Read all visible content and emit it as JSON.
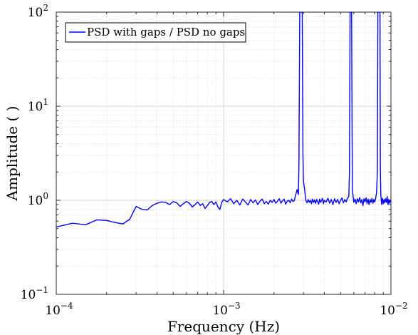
{
  "chart_data": {
    "type": "line",
    "xlabel": "Frequency (Hz)",
    "ylabel": "Amplitude ( )",
    "xscale": "log",
    "yscale": "log",
    "xlim": [
      0.0001,
      0.01
    ],
    "ylim": [
      0.1,
      100
    ],
    "grid": "on (major and minor)",
    "legend_position": "top-left",
    "x_ticks": [
      {
        "base": "10",
        "exp": "−4",
        "value": 0.0001
      },
      {
        "base": "10",
        "exp": "−3",
        "value": 0.001
      },
      {
        "base": "10",
        "exp": "−2",
        "value": 0.01
      }
    ],
    "y_ticks": [
      {
        "base": "10",
        "exp": "−1",
        "value": 0.1
      },
      {
        "base": "10",
        "exp": "0",
        "value": 1
      },
      {
        "base": "10",
        "exp": "1",
        "value": 10
      },
      {
        "base": "10",
        "exp": "2",
        "value": 100
      }
    ],
    "series": [
      {
        "name": "PSD with gaps / PSD no gaps",
        "color": "#0000ff",
        "points": [
          [
            0.0001,
            0.52
          ],
          [
            0.000125,
            0.57
          ],
          [
            0.00015,
            0.55
          ],
          [
            0.000175,
            0.62
          ],
          [
            0.0002,
            0.61
          ],
          [
            0.000225,
            0.58
          ],
          [
            0.00025,
            0.56
          ],
          [
            0.000275,
            0.63
          ],
          [
            0.0003,
            0.86
          ],
          [
            0.000325,
            0.8
          ],
          [
            0.00035,
            0.79
          ],
          [
            0.000375,
            0.88
          ],
          [
            0.0004,
            0.93
          ],
          [
            0.000425,
            0.96
          ],
          [
            0.00045,
            0.95
          ],
          [
            0.000475,
            0.9
          ],
          [
            0.0005,
            0.97
          ],
          [
            0.000525,
            0.94
          ],
          [
            0.00055,
            0.86
          ],
          [
            0.000575,
            0.92
          ],
          [
            0.0006,
            0.97
          ],
          [
            0.000625,
            0.93
          ],
          [
            0.00065,
            0.85
          ],
          [
            0.000675,
            0.9
          ],
          [
            0.0007,
            0.96
          ],
          [
            0.000725,
            0.88
          ],
          [
            0.00075,
            0.92
          ],
          [
            0.000775,
            0.82
          ],
          [
            0.0008,
            0.88
          ],
          [
            0.000825,
            0.95
          ],
          [
            0.00085,
            0.97
          ],
          [
            0.000875,
            0.9
          ],
          [
            0.0009,
            0.96
          ],
          [
            0.000925,
            0.85
          ],
          [
            0.00095,
            0.8
          ],
          [
            0.000975,
            0.95
          ],
          [
            0.001,
            1.02
          ],
          [
            0.00105,
            0.96
          ],
          [
            0.0011,
            1.04
          ],
          [
            0.00115,
            0.92
          ],
          [
            0.0012,
            1.0
          ],
          [
            0.00125,
            0.89
          ],
          [
            0.0013,
            1.03
          ],
          [
            0.00135,
            0.96
          ],
          [
            0.0014,
            0.89
          ],
          [
            0.00145,
            1.02
          ],
          [
            0.0015,
            0.94
          ],
          [
            0.00155,
            1.01
          ],
          [
            0.0016,
            0.9
          ],
          [
            0.00165,
            0.98
          ],
          [
            0.0017,
            1.03
          ],
          [
            0.00175,
            0.92
          ],
          [
            0.0018,
            0.97
          ],
          [
            0.00185,
            0.91
          ],
          [
            0.0019,
            1.0
          ],
          [
            0.00195,
            0.95
          ],
          [
            0.002,
            1.02
          ],
          [
            0.00205,
            0.93
          ],
          [
            0.0021,
            0.98
          ],
          [
            0.00215,
            1.04
          ],
          [
            0.0022,
            0.93
          ],
          [
            0.00225,
            0.99
          ],
          [
            0.0023,
            1.03
          ],
          [
            0.00235,
            0.91
          ],
          [
            0.0024,
            0.98
          ],
          [
            0.00245,
            1.0
          ],
          [
            0.0025,
            0.94
          ],
          [
            0.00255,
            1.03
          ],
          [
            0.0026,
            0.97
          ],
          [
            0.00265,
            1.0
          ],
          [
            0.0027,
            1.15
          ],
          [
            0.00275,
            1.3
          ],
          [
            0.0028,
            1.15
          ],
          [
            0.00282,
            2.5
          ],
          [
            0.00285,
            100
          ],
          [
            0.0029,
            100
          ],
          [
            0.00295,
            100
          ],
          [
            0.00298,
            3.0
          ],
          [
            0.003,
            1.6
          ],
          [
            0.00305,
            1.3
          ],
          [
            0.0031,
            1.0
          ],
          [
            0.00315,
            0.94
          ],
          [
            0.0032,
            1.02
          ],
          [
            0.00325,
            0.95
          ],
          [
            0.0033,
            1.0
          ],
          [
            0.00335,
            0.92
          ],
          [
            0.0034,
            1.03
          ],
          [
            0.00345,
            0.95
          ],
          [
            0.0035,
            1.01
          ],
          [
            0.00355,
            0.93
          ],
          [
            0.0036,
            1.02
          ],
          [
            0.00365,
            0.97
          ],
          [
            0.0037,
            0.91
          ],
          [
            0.00375,
            1.03
          ],
          [
            0.0038,
            0.95
          ],
          [
            0.00385,
            1.0
          ],
          [
            0.0039,
            1.05
          ],
          [
            0.00395,
            0.92
          ],
          [
            0.004,
            1.0
          ],
          [
            0.0041,
            0.96
          ],
          [
            0.0042,
            1.05
          ],
          [
            0.0043,
            0.93
          ],
          [
            0.0044,
            1.02
          ],
          [
            0.0045,
            0.9
          ],
          [
            0.0046,
            1.04
          ],
          [
            0.0047,
            0.95
          ],
          [
            0.0048,
            1.02
          ],
          [
            0.0049,
            0.92
          ],
          [
            0.005,
            1.0
          ],
          [
            0.0051,
            1.06
          ],
          [
            0.0052,
            0.94
          ],
          [
            0.0053,
            1.02
          ],
          [
            0.0054,
            0.96
          ],
          [
            0.0055,
            1.05
          ],
          [
            0.0056,
            1.1
          ],
          [
            0.00565,
            2.0
          ],
          [
            0.0057,
            100
          ],
          [
            0.00582,
            100
          ],
          [
            0.00588,
            1.3
          ],
          [
            0.006,
            0.95
          ],
          [
            0.0061,
            1.03
          ],
          [
            0.0062,
            0.92
          ],
          [
            0.0063,
            1.04
          ],
          [
            0.0064,
            0.96
          ],
          [
            0.0065,
            1.07
          ],
          [
            0.0066,
            0.94
          ],
          [
            0.0067,
            1.02
          ],
          [
            0.0068,
            0.88
          ],
          [
            0.0069,
            1.04
          ],
          [
            0.007,
            0.96
          ],
          [
            0.0071,
            1.06
          ],
          [
            0.0072,
            0.92
          ],
          [
            0.0073,
            1.03
          ],
          [
            0.0074,
            0.9
          ],
          [
            0.0075,
            1.02
          ],
          [
            0.0076,
            0.95
          ],
          [
            0.0077,
            1.05
          ],
          [
            0.0078,
            0.93
          ],
          [
            0.0079,
            1.02
          ],
          [
            0.008,
            0.96
          ],
          [
            0.0081,
            1.04
          ],
          [
            0.0082,
            1.2
          ],
          [
            0.0083,
            2.0
          ],
          [
            0.00835,
            100
          ],
          [
            0.0086,
            100
          ],
          [
            0.00865,
            2.0
          ],
          [
            0.0087,
            1.15
          ],
          [
            0.0088,
            0.9
          ],
          [
            0.0089,
            1.05
          ],
          [
            0.009,
            0.92
          ],
          [
            0.0091,
            1.02
          ],
          [
            0.0092,
            0.94
          ],
          [
            0.0093,
            1.04
          ],
          [
            0.0094,
            0.95
          ],
          [
            0.0095,
            1.1
          ],
          [
            0.0096,
            0.9
          ],
          [
            0.0097,
            1.02
          ],
          [
            0.0098,
            0.93
          ],
          [
            0.0099,
            1.0
          ],
          [
            0.01,
            0.96
          ]
        ]
      }
    ]
  }
}
